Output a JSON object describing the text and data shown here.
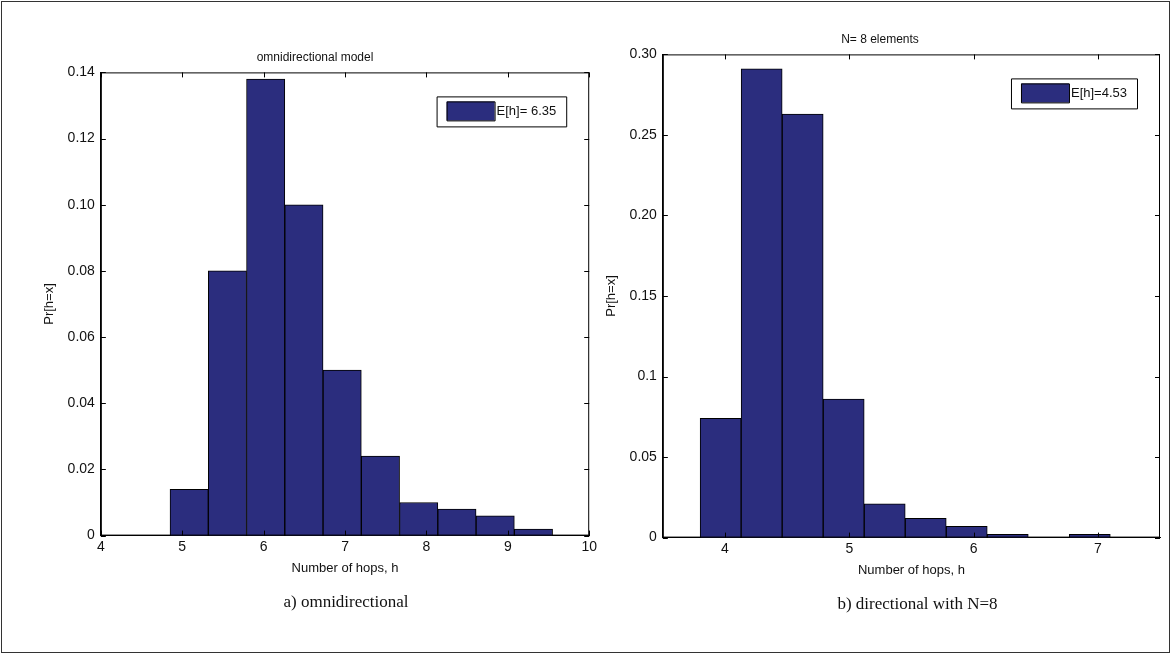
{
  "chart_data": [
    {
      "type": "histogram",
      "title": "omnidirectional model",
      "xlabel": "Number of hops, h",
      "ylabel": "Pr[h=x]",
      "bins": [
        4.85,
        5.32,
        5.79,
        6.26,
        6.73,
        7.2,
        7.67,
        8.14,
        8.61,
        9.08,
        9.55
      ],
      "series": [
        {
          "name": "E[h]= 6.35",
          "color": "#2b2d7e",
          "values": [
            0.014,
            0.08,
            0.138,
            0.1,
            0.05,
            0.024,
            0.01,
            0.008,
            0.006,
            0.002
          ]
        }
      ],
      "xlim": [
        4,
        10
      ],
      "xticks": [
        4,
        5,
        6,
        7,
        8,
        9,
        10
      ],
      "ylim": [
        0,
        0.14
      ],
      "yticks": [
        0,
        0.02,
        0.04,
        0.06,
        0.08,
        {
          "value": 0.1,
          "label": "0.10"
        },
        {
          "value": 0.12,
          "label": "0.12"
        },
        {
          "value": 0.14,
          "label": "0.14"
        }
      ],
      "grid": false,
      "legend": "top right",
      "annotations": [
        "a) omnidirectional"
      ]
    },
    {
      "type": "histogram",
      "title": "N= 8 elements",
      "xlabel": "Number of hops, h",
      "ylabel": "Pr[h=x]",
      "bins": [
        3.8,
        4.13,
        4.46,
        4.79,
        5.12,
        5.45,
        5.78,
        6.11,
        6.44,
        6.77,
        7.1
      ],
      "series": [
        {
          "name": "E[h]=4.53",
          "color": "#2b2d7e",
          "values": [
            0.074,
            0.291,
            0.263,
            0.086,
            0.021,
            0.012,
            0.007,
            0.002,
            0,
            0.002
          ]
        }
      ],
      "xlim": [
        3.5,
        7.5
      ],
      "xticks": [
        4,
        5,
        6,
        7
      ],
      "ylim": [
        0,
        0.3
      ],
      "yticks": [
        0,
        0.05,
        0.1,
        0.15,
        {
          "value": 0.2,
          "label": "0.20"
        },
        0.25,
        {
          "value": 0.3,
          "label": "0.30"
        }
      ],
      "grid": false,
      "legend": "top right",
      "annotations": [
        "b) directional with N=8"
      ]
    }
  ]
}
